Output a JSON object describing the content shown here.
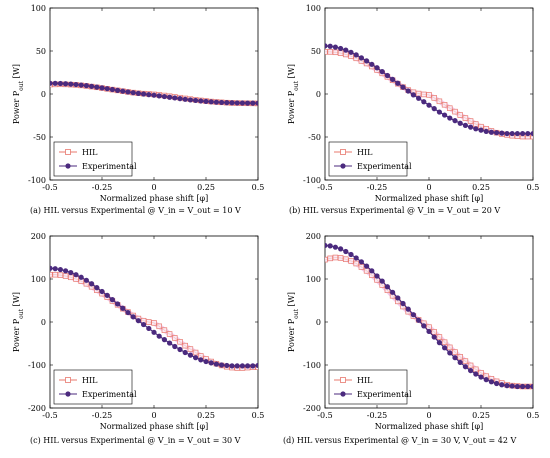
{
  "chart_data": [
    {
      "type": "line",
      "caption": "(a) HIL versus Experimental @ V_in = V_out = 10 V",
      "xlabel": "Normalized phase shift [φ]",
      "ylabel": "Power P_out [W]",
      "xlim": [
        -0.5,
        0.5
      ],
      "ylim": [
        -100,
        100
      ],
      "xticks": [
        "-0.5",
        "-0.25",
        "0",
        "0.25",
        "0.5"
      ],
      "yticks": [
        "100",
        "50",
        "0",
        "-50",
        "-100"
      ],
      "legend": {
        "placement": "bottom-left",
        "entries": [
          "HIL",
          "Experimental"
        ]
      },
      "x": [
        -0.5,
        -0.475,
        -0.45,
        -0.425,
        -0.4,
        -0.375,
        -0.35,
        -0.325,
        -0.3,
        -0.275,
        -0.25,
        -0.225,
        -0.2,
        -0.175,
        -0.15,
        -0.125,
        -0.1,
        -0.075,
        -0.05,
        -0.025,
        0,
        0.025,
        0.05,
        0.075,
        0.1,
        0.125,
        0.15,
        0.175,
        0.2,
        0.225,
        0.25,
        0.275,
        0.3,
        0.325,
        0.35,
        0.375,
        0.4,
        0.425,
        0.45,
        0.475,
        0.5
      ],
      "series": [
        {
          "name": "HIL",
          "marker": "square-open",
          "color": "#e8786e",
          "values": [
            11,
            11.2,
            11.3,
            11.2,
            10.9,
            10.6,
            10,
            9.4,
            8.6,
            7.8,
            6.9,
            6,
            5.1,
            4.2,
            3.3,
            2.4,
            1.6,
            0.9,
            0.4,
            0.1,
            -0.5,
            -1.1,
            -1.8,
            -2.6,
            -3.4,
            -4.3,
            -5.2,
            -6,
            -6.8,
            -7.5,
            -8.2,
            -8.8,
            -9.3,
            -9.7,
            -10.1,
            -10.4,
            -10.6,
            -10.7,
            -10.8,
            -10.9,
            -11
          ]
        },
        {
          "name": "Experimental",
          "marker": "circle-filled",
          "color": "#4b2a7e",
          "values": [
            12.5,
            12.4,
            12.2,
            11.9,
            11.5,
            11,
            10.4,
            9.7,
            8.9,
            8,
            7.1,
            6.2,
            5.2,
            4.2,
            3.3,
            2.4,
            1.5,
            0.7,
            0,
            -0.7,
            -1.4,
            -2.2,
            -3,
            -3.8,
            -4.6,
            -5.4,
            -6.2,
            -6.9,
            -7.5,
            -8.1,
            -8.6,
            -9.1,
            -9.5,
            -9.8,
            -10,
            -10.2,
            -10.4,
            -10.5,
            -10.6,
            -10.6,
            -10.7
          ]
        }
      ]
    },
    {
      "type": "line",
      "caption": "(b) HIL versus Experimental @ V_in = V_out = 20 V",
      "xlabel": "Normalized phase shift [φ]",
      "ylabel": "Power P_out [W]",
      "xlim": [
        -0.5,
        0.5
      ],
      "ylim": [
        -100,
        100
      ],
      "xticks": [
        "-0.5",
        "-0.25",
        "0",
        "0.25",
        "0.5"
      ],
      "yticks": [
        "100",
        "50",
        "0",
        "-50",
        "-100"
      ],
      "legend": {
        "placement": "bottom-left",
        "entries": [
          "HIL",
          "Experimental"
        ]
      },
      "x": [
        -0.5,
        -0.475,
        -0.45,
        -0.425,
        -0.4,
        -0.375,
        -0.35,
        -0.325,
        -0.3,
        -0.275,
        -0.25,
        -0.225,
        -0.2,
        -0.175,
        -0.15,
        -0.125,
        -0.1,
        -0.075,
        -0.05,
        -0.025,
        0,
        0.025,
        0.05,
        0.075,
        0.1,
        0.125,
        0.15,
        0.175,
        0.2,
        0.225,
        0.25,
        0.275,
        0.3,
        0.325,
        0.35,
        0.375,
        0.4,
        0.425,
        0.45,
        0.475,
        0.5
      ],
      "series": [
        {
          "name": "HIL",
          "marker": "square-open",
          "color": "#e8786e",
          "values": [
            49,
            49,
            48.5,
            47.5,
            46,
            44,
            41.5,
            38.5,
            35.5,
            32,
            28,
            24,
            20,
            16,
            12,
            8,
            4.5,
            2,
            0.5,
            -0.5,
            -1,
            -4.5,
            -8.5,
            -12.5,
            -16.5,
            -20.5,
            -24.5,
            -28,
            -31.5,
            -35,
            -38,
            -40.5,
            -43,
            -45,
            -46.5,
            -47.5,
            -48.5,
            -49,
            -49.5,
            -49.5,
            -49.5
          ]
        },
        {
          "name": "Experimental",
          "marker": "circle-filled",
          "color": "#4b2a7e",
          "values": [
            56,
            55.5,
            54.5,
            53,
            51,
            48.5,
            45.5,
            42,
            38.5,
            34.5,
            30.5,
            26,
            21.5,
            17,
            12.5,
            8,
            3.5,
            -1,
            -5,
            -9,
            -13,
            -17,
            -21,
            -24.5,
            -28,
            -31,
            -34,
            -36.5,
            -38.5,
            -40.5,
            -42,
            -43.5,
            -44.5,
            -45,
            -45.5,
            -46,
            -46,
            -46,
            -46,
            -46,
            -46
          ]
        }
      ]
    },
    {
      "type": "line",
      "caption": "(c) HIL versus Experimental @ V_in = V_out = 30 V",
      "xlabel": "Normalized phase shift [φ]",
      "ylabel": "Power P_out [W]",
      "xlim": [
        -0.5,
        0.5
      ],
      "ylim": [
        -200,
        200
      ],
      "xticks": [
        "-0.5",
        "-0.25",
        "0",
        "0.25",
        "0.5"
      ],
      "yticks": [
        "200",
        "100",
        "0",
        "-100",
        "-200"
      ],
      "legend": {
        "placement": "bottom-left",
        "entries": [
          "HIL",
          "Experimental"
        ]
      },
      "x": [
        -0.5,
        -0.475,
        -0.45,
        -0.425,
        -0.4,
        -0.375,
        -0.35,
        -0.325,
        -0.3,
        -0.275,
        -0.25,
        -0.225,
        -0.2,
        -0.175,
        -0.15,
        -0.125,
        -0.1,
        -0.075,
        -0.05,
        -0.025,
        0,
        0.025,
        0.05,
        0.075,
        0.1,
        0.125,
        0.15,
        0.175,
        0.2,
        0.225,
        0.25,
        0.275,
        0.3,
        0.325,
        0.35,
        0.375,
        0.4,
        0.425,
        0.45,
        0.475,
        0.5
      ],
      "series": [
        {
          "name": "HIL",
          "marker": "square-open",
          "color": "#e8786e",
          "values": [
            110,
            110,
            109,
            107,
            104,
            100,
            95,
            89,
            82,
            74,
            66,
            58,
            49,
            40,
            31,
            23,
            15,
            8,
            3,
            0,
            -2,
            -10,
            -19,
            -28,
            -37,
            -46,
            -55,
            -63,
            -71,
            -79,
            -86,
            -92,
            -97,
            -101,
            -104,
            -106,
            -107,
            -107,
            -106,
            -105,
            -105
          ]
        },
        {
          "name": "Experimental",
          "marker": "circle-filled",
          "color": "#4b2a7e",
          "values": [
            125,
            124,
            122,
            119,
            115,
            110,
            104,
            97,
            89,
            80,
            71,
            62,
            52,
            42,
            32,
            22,
            12,
            3,
            -6,
            -15,
            -24,
            -33,
            -41,
            -49,
            -57,
            -64,
            -71,
            -77,
            -83,
            -88,
            -92,
            -95,
            -98,
            -100,
            -101,
            -102,
            -102,
            -102,
            -102,
            -102,
            -101
          ]
        }
      ]
    },
    {
      "type": "line",
      "caption": "(d) HIL versus Experimental @ V_in = 30 V, V_out = 42 V",
      "xlabel": "Normalized phase shift [φ]",
      "ylabel": "Power P_out [W]",
      "xlim": [
        -0.5,
        0.5
      ],
      "ylim": [
        -200,
        200
      ],
      "xticks": [
        "-0.5",
        "-0.25",
        "0",
        "0.25",
        "0.5"
      ],
      "yticks": [
        "200",
        "100",
        "0",
        "-100",
        "-200"
      ],
      "legend": {
        "placement": "bottom-left",
        "entries": [
          "HIL",
          "Experimental"
        ]
      },
      "x": [
        -0.5,
        -0.475,
        -0.45,
        -0.425,
        -0.4,
        -0.375,
        -0.35,
        -0.325,
        -0.3,
        -0.275,
        -0.25,
        -0.225,
        -0.2,
        -0.175,
        -0.15,
        -0.125,
        -0.1,
        -0.075,
        -0.05,
        -0.025,
        0,
        0.025,
        0.05,
        0.075,
        0.1,
        0.125,
        0.15,
        0.175,
        0.2,
        0.225,
        0.25,
        0.275,
        0.3,
        0.325,
        0.35,
        0.375,
        0.4,
        0.425,
        0.45,
        0.475,
        0.5
      ],
      "series": [
        {
          "name": "HIL",
          "marker": "square-open",
          "color": "#e8786e",
          "values": [
            145,
            148,
            150,
            149,
            146,
            142,
            136,
            128,
            119,
            109,
            98,
            86,
            74,
            61,
            48,
            36,
            24,
            14,
            5,
            -3,
            -12,
            -23,
            -35,
            -47,
            -59,
            -70,
            -81,
            -91,
            -101,
            -110,
            -118,
            -126,
            -132,
            -138,
            -142,
            -146,
            -148,
            -149,
            -150,
            -150,
            -150
          ]
        },
        {
          "name": "Experimental",
          "marker": "circle-filled",
          "color": "#4b2a7e",
          "values": [
            178,
            177,
            174,
            170,
            164,
            157,
            149,
            140,
            130,
            119,
            107,
            95,
            82,
            69,
            56,
            43,
            30,
            17,
            4,
            -9,
            -22,
            -35,
            -48,
            -60,
            -72,
            -83,
            -94,
            -104,
            -113,
            -121,
            -128,
            -134,
            -139,
            -143,
            -146,
            -148,
            -149,
            -150,
            -150,
            -150,
            -150
          ]
        }
      ]
    }
  ]
}
